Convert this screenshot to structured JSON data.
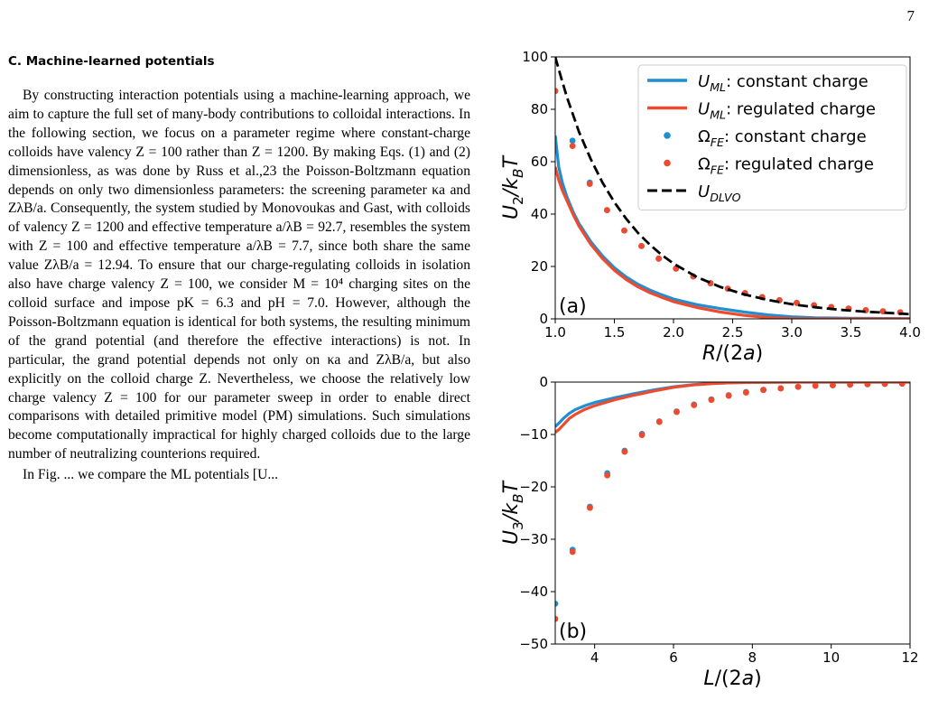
{
  "page_number": "7",
  "section": {
    "heading": "C.   Machine-learned potentials",
    "paragraph": "By constructing interaction potentials using a machine-learning approach, we aim to capture the full set of many-body contributions to colloidal interactions. In the following section, we focus on a parameter regime where constant-charge colloids have valency Z = 100 rather than Z = 1200. By making Eqs. (1) and (2) dimensionless, as was done by Russ et al.,23 the Poisson-Boltzmann equation depends on only two dimensionless parameters: the screening parameter κa and ZλB/a. Consequently, the system studied by Monovoukas and Gast, with colloids of valency Z = 1200 and effective temperature a/λB = 92.7, resembles the system with Z = 100 and effective temperature a/λB = 7.7, since both share the same value ZλB/a = 12.94. To ensure that our charge-regulating colloids in isolation also have charge valency Z = 100, we consider M = 10⁴ charging sites on the colloid surface and impose pK = 6.3 and pH = 7.0. However, although the Poisson-Boltzmann equation is identical for both systems, the resulting minimum of the grand potential (and therefore the effective interactions) is not. In particular, the grand potential depends not only on κa and ZλB/a, but also explicitly on the colloid charge Z. Nevertheless, we choose the relatively low charge valency Z = 100 for our parameter sweep in order to enable direct comparisons with detailed primitive model (PM) simulations. Such simulations become computationally impractical for highly charged colloids due to the large number of neutralizing counterions required.",
    "next_paragraph_start": "In Fig. ... we compare the ML potentials [U..."
  },
  "colors": {
    "constant": "#1f8fd1",
    "regulated": "#f04a2e",
    "dlvo": "#000000"
  },
  "chart_data": [
    {
      "type": "line",
      "panel_label": "(a)",
      "xlabel": "R/(2a)",
      "ylabel": "U2/kBT",
      "xlim": [
        1.0,
        4.0
      ],
      "ylim": [
        0,
        100
      ],
      "xticks": [
        "1.0",
        "1.5",
        "2.0",
        "2.5",
        "3.0",
        "3.5",
        "4.0"
      ],
      "yticks": [
        "0",
        "20",
        "40",
        "60",
        "80",
        "100"
      ],
      "legend_position": "top-right",
      "series": [
        {
          "name": "U_ML: constant charge",
          "style": "line",
          "color_key": "constant",
          "x": [
            1.0,
            1.03,
            1.06,
            1.1,
            1.15,
            1.2,
            1.3,
            1.4,
            1.5,
            1.6,
            1.7,
            1.8,
            1.9,
            2.0,
            2.2,
            2.4,
            2.6,
            2.8,
            3.0,
            3.2,
            3.5,
            4.0
          ],
          "y": [
            70,
            58,
            52,
            46.5,
            41,
            36.5,
            29.5,
            24,
            19.5,
            16,
            13.2,
            11,
            9.2,
            7.6,
            5.4,
            3.9,
            2.6,
            1.5,
            0.8,
            0.4,
            0.2,
            0.1
          ]
        },
        {
          "name": "U_ML: regulated charge",
          "style": "line",
          "color_key": "regulated",
          "x": [
            1.0,
            1.03,
            1.06,
            1.1,
            1.15,
            1.2,
            1.3,
            1.4,
            1.5,
            1.6,
            1.7,
            1.8,
            1.9,
            2.0,
            2.2,
            2.4,
            2.6,
            2.8,
            3.0,
            3.2,
            3.5,
            4.0
          ],
          "y": [
            58,
            53,
            49,
            45,
            40,
            35.5,
            28.5,
            23,
            18.5,
            15,
            12.2,
            10,
            8.2,
            6.6,
            4.3,
            2.6,
            1.3,
            0.5,
            0.1,
            0.0,
            0.0,
            0.0
          ]
        },
        {
          "name": "Ω_FE: constant charge",
          "style": "markers",
          "color_key": "constant",
          "x": [
            1.0,
            1.146,
            1.292,
            1.438,
            1.584,
            1.729,
            1.875,
            2.021,
            2.167,
            2.313,
            2.459,
            2.605,
            2.75,
            2.896,
            3.042,
            3.188,
            3.334,
            3.48,
            3.626,
            3.771,
            3.917
          ],
          "y": [
            87,
            68,
            52,
            41.5,
            33.7,
            27.8,
            23,
            19.2,
            16.2,
            13.6,
            11.5,
            9.8,
            8.3,
            7.1,
            6.1,
            5.2,
            4.5,
            3.9,
            3.3,
            2.9,
            2.5
          ]
        },
        {
          "name": "Ω_FE: regulated charge",
          "style": "markers",
          "color_key": "regulated",
          "x": [
            1.0,
            1.146,
            1.292,
            1.438,
            1.584,
            1.729,
            1.875,
            2.021,
            2.167,
            2.313,
            2.459,
            2.605,
            2.75,
            2.896,
            3.042,
            3.188,
            3.334,
            3.48,
            3.626,
            3.771,
            3.917
          ],
          "y": [
            87,
            66,
            51.5,
            41.5,
            33.7,
            27.8,
            23,
            19.2,
            16.2,
            13.6,
            11.5,
            9.8,
            8.3,
            7.1,
            6.1,
            5.2,
            4.5,
            3.9,
            3.3,
            2.9,
            2.5
          ]
        },
        {
          "name": "U_DLVO",
          "style": "dashed",
          "color_key": "dlvo",
          "x": [
            1.0,
            1.05,
            1.1,
            1.2,
            1.3,
            1.4,
            1.5,
            1.6,
            1.7,
            1.8,
            1.9,
            2.0,
            2.2,
            2.4,
            2.6,
            2.8,
            3.0,
            3.2,
            3.4,
            3.6,
            3.8,
            4.0
          ],
          "y": [
            100,
            92,
            84.5,
            71.5,
            61,
            52,
            44.5,
            38.2,
            32.8,
            28.3,
            24.4,
            21.1,
            15.9,
            12.1,
            9.3,
            7.2,
            5.6,
            4.4,
            3.5,
            2.8,
            2.3,
            1.8
          ]
        }
      ]
    },
    {
      "type": "line",
      "panel_label": "(b)",
      "xlabel": "L/(2a)",
      "ylabel": "U3/kBT",
      "xlim": [
        3,
        12
      ],
      "ylim": [
        -50,
        0
      ],
      "xticks": [
        "4",
        "6",
        "8",
        "10",
        "12"
      ],
      "yticks": [
        "0",
        "−10",
        "−20",
        "−30",
        "−40",
        "−50"
      ],
      "series": [
        {
          "name": "U_ML: constant charge",
          "style": "line",
          "color_key": "constant",
          "x": [
            3.0,
            3.1,
            3.2,
            3.35,
            3.5,
            3.75,
            4.0,
            4.5,
            5.0,
            5.5,
            6.0,
            6.5,
            7.0,
            7.5,
            8.0,
            9.0,
            10.0,
            11.0,
            12.0
          ],
          "y": [
            -8.5,
            -7.8,
            -7.0,
            -6.0,
            -5.3,
            -4.5,
            -3.9,
            -3.0,
            -2.2,
            -1.5,
            -0.9,
            -0.5,
            -0.25,
            -0.1,
            -0.05,
            0,
            0,
            0,
            0
          ]
        },
        {
          "name": "U_ML: regulated charge",
          "style": "line",
          "color_key": "regulated",
          "x": [
            3.0,
            3.1,
            3.2,
            3.35,
            3.5,
            3.75,
            4.0,
            4.5,
            5.0,
            5.5,
            6.0,
            6.5,
            7.0,
            7.5,
            8.0,
            9.0,
            10.0,
            11.0,
            12.0
          ],
          "y": [
            -9.6,
            -9.0,
            -8.2,
            -7.0,
            -6.2,
            -5.2,
            -4.5,
            -3.4,
            -2.5,
            -1.7,
            -1.0,
            -0.55,
            -0.3,
            -0.12,
            -0.05,
            0,
            0,
            0,
            0
          ]
        },
        {
          "name": "Ω_FE: constant charge",
          "style": "markers",
          "color_key": "constant",
          "x": [
            3.0,
            3.44,
            3.88,
            4.32,
            4.76,
            5.2,
            5.64,
            6.08,
            6.52,
            6.96,
            7.4,
            7.84,
            8.28,
            8.72,
            9.16,
            9.6,
            10.04,
            10.48,
            10.92,
            11.36,
            11.8
          ],
          "y": [
            -42.3,
            -32.0,
            -23.8,
            -17.4,
            -13.1,
            -9.9,
            -7.5,
            -5.6,
            -4.3,
            -3.3,
            -2.5,
            -1.9,
            -1.5,
            -1.2,
            -0.9,
            -0.7,
            -0.6,
            -0.5,
            -0.4,
            -0.35,
            -0.3
          ]
        },
        {
          "name": "Ω_FE: regulated charge",
          "style": "markers",
          "color_key": "regulated",
          "x": [
            3.0,
            3.44,
            3.88,
            4.32,
            4.76,
            5.2,
            5.64,
            6.08,
            6.52,
            6.96,
            7.4,
            7.84,
            8.28,
            8.72,
            9.16,
            9.6,
            10.04,
            10.48,
            10.92,
            11.36,
            11.8
          ],
          "y": [
            -45.2,
            -32.4,
            -24.0,
            -17.8,
            -13.3,
            -10.1,
            -7.6,
            -5.7,
            -4.4,
            -3.4,
            -2.6,
            -2.0,
            -1.5,
            -1.2,
            -0.9,
            -0.7,
            -0.6,
            -0.5,
            -0.4,
            -0.35,
            -0.3
          ]
        }
      ]
    }
  ]
}
